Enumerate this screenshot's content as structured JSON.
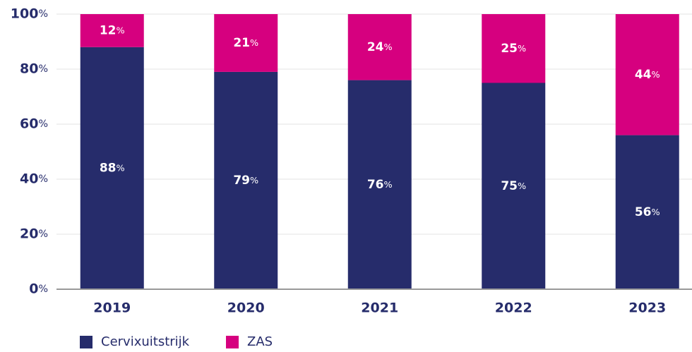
{
  "chart_data": {
    "type": "stacked-bar",
    "categories": [
      "2019",
      "2020",
      "2021",
      "2022",
      "2023"
    ],
    "series": [
      {
        "name": "Cervixuitstrijk",
        "color": "#262c6b",
        "values": [
          88,
          79,
          76,
          75,
          56
        ],
        "value_labels": [
          "88%",
          "79%",
          "76%",
          "75%",
          "56%"
        ]
      },
      {
        "name": "ZAS",
        "color": "#d6007f",
        "values": [
          12,
          21,
          24,
          25,
          44
        ],
        "value_labels": [
          "12%",
          "21%",
          "24%",
          "25%",
          "44%"
        ]
      }
    ],
    "ylim": [
      0,
      100
    ],
    "yticks": [
      {
        "value": 0,
        "label": "0%"
      },
      {
        "value": 20,
        "label": "20%"
      },
      {
        "value": 40,
        "label": "40%"
      },
      {
        "value": 60,
        "label": "60%"
      },
      {
        "value": 80,
        "label": "80%"
      },
      {
        "value": 100,
        "label": "100%"
      }
    ],
    "grid": true
  }
}
